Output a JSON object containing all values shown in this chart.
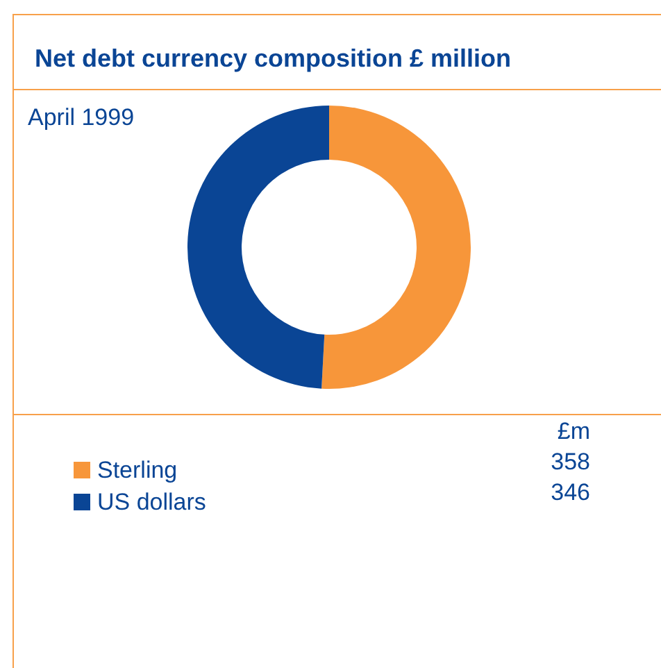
{
  "chart_data": {
    "type": "donut",
    "title": "Net debt currency composition",
    "subtitle": "£ million",
    "annotations": [
      "April 1999"
    ],
    "legend_title": "£m",
    "categories": [
      "Sterling",
      "US dollars"
    ],
    "values": [
      358,
      346
    ],
    "colors": [
      "#f7963a",
      "#0a4595"
    ],
    "legend": "bottom",
    "data_labels": true
  }
}
